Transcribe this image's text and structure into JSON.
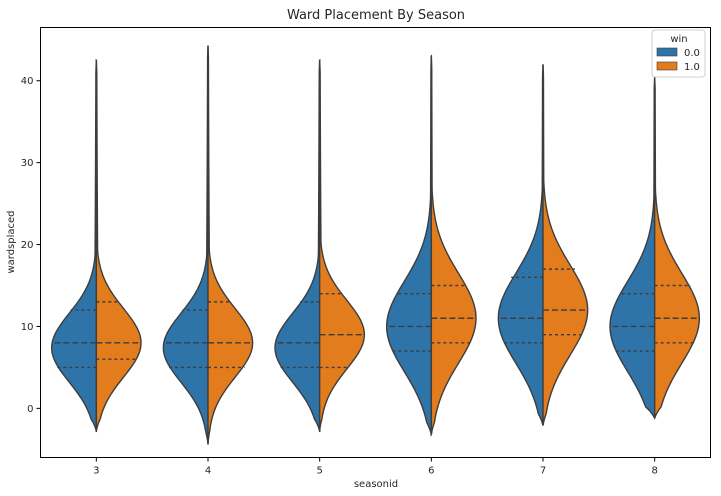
{
  "chart_data": {
    "type": "violin",
    "title": "Ward Placement By Season",
    "xlabel": "seasonid",
    "ylabel": "wardsplaced",
    "categories": [
      "3",
      "4",
      "5",
      "6",
      "7",
      "8"
    ],
    "ylim": [
      -6,
      46.5
    ],
    "yticks": [
      0,
      10,
      20,
      30,
      40
    ],
    "grid": false,
    "legend": {
      "title": "win",
      "position": "top-right",
      "entries": [
        {
          "label": "0.0",
          "color": "#2e74a8"
        },
        {
          "label": "1.0",
          "color": "#e37c1c"
        }
      ]
    },
    "series": [
      {
        "name": "0.0",
        "color": "#2e74a8",
        "violins": [
          {
            "category": "3",
            "min": -2.8,
            "max": 42.5,
            "q1": 5,
            "median": 8,
            "q3": 12
          },
          {
            "category": "4",
            "min": -4.4,
            "max": 44.3,
            "q1": 5,
            "median": 8,
            "q3": 12
          },
          {
            "category": "5",
            "min": -2.8,
            "max": 42.5,
            "q1": 5,
            "median": 8,
            "q3": 13
          },
          {
            "category": "6",
            "min": -3.2,
            "max": 43.0,
            "q1": 7,
            "median": 10,
            "q3": 14
          },
          {
            "category": "7",
            "min": -2.1,
            "max": 42.0,
            "q1": 8,
            "median": 11,
            "q3": 16
          },
          {
            "category": "8",
            "min": -1.2,
            "max": 40.5,
            "q1": 7,
            "median": 10,
            "q3": 14
          }
        ]
      },
      {
        "name": "1.0",
        "color": "#e37c1c",
        "violins": [
          {
            "category": "3",
            "min": -2.8,
            "max": 42.5,
            "q1": 6,
            "median": 8,
            "q3": 13
          },
          {
            "category": "4",
            "min": -4.4,
            "max": 44.3,
            "q1": 5,
            "median": 8,
            "q3": 13
          },
          {
            "category": "5",
            "min": -2.8,
            "max": 42.5,
            "q1": 5,
            "median": 9,
            "q3": 14
          },
          {
            "category": "6",
            "min": -3.2,
            "max": 43.0,
            "q1": 8,
            "median": 11,
            "q3": 15
          },
          {
            "category": "7",
            "min": -2.1,
            "max": 42.0,
            "q1": 9,
            "median": 12,
            "q3": 17
          },
          {
            "category": "8",
            "min": -1.2,
            "max": 40.5,
            "q1": 8,
            "median": 11,
            "q3": 15
          }
        ]
      }
    ]
  }
}
